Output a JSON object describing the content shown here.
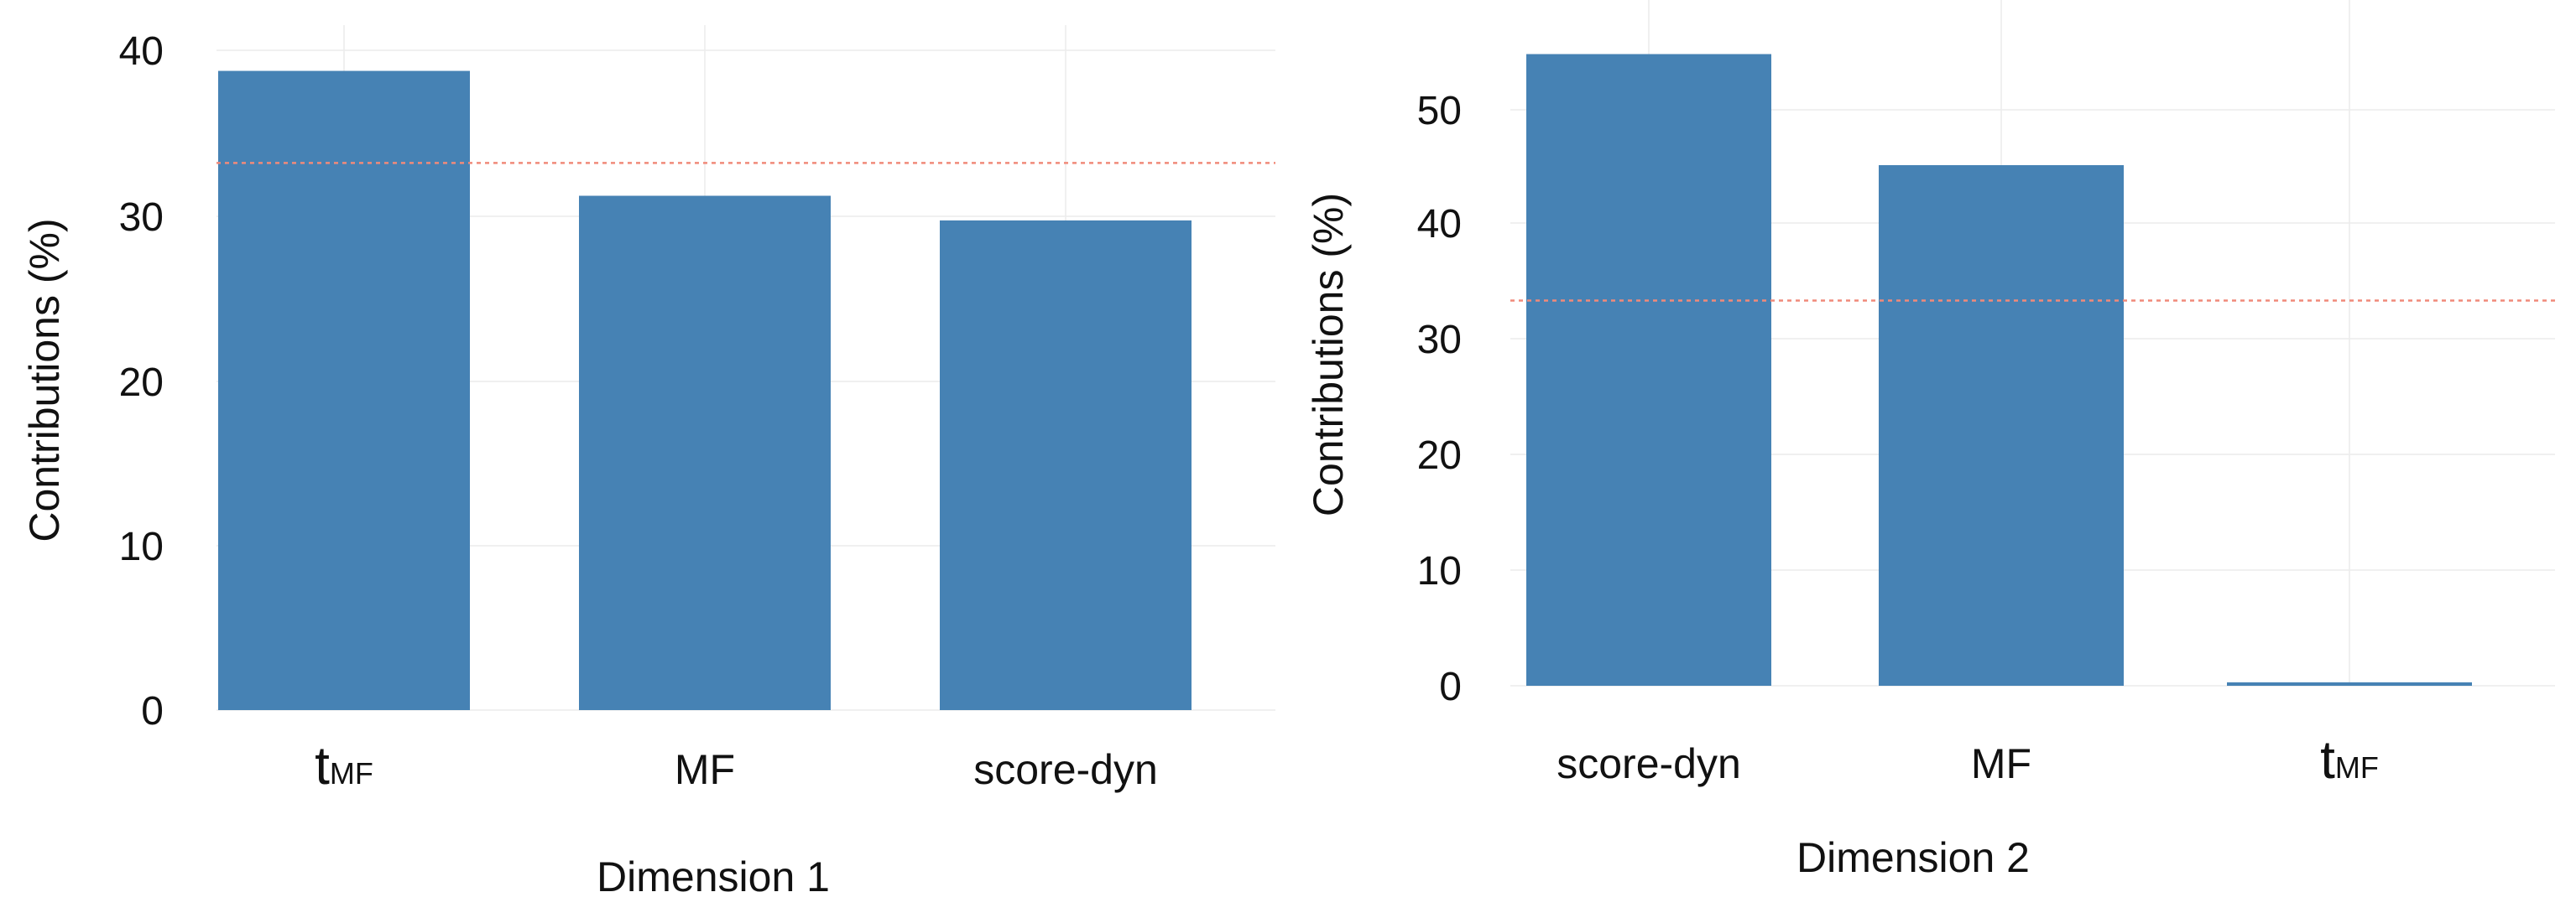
{
  "chart_data": [
    {
      "type": "bar",
      "categories": [
        "tMF",
        "MF",
        "score-dyn"
      ],
      "category_labels": [
        {
          "main": "t",
          "sub": "MF"
        },
        {
          "main": "MF",
          "sub": ""
        },
        {
          "main": "score-dyn",
          "sub": ""
        }
      ],
      "values": [
        38.9,
        31.3,
        29.8
      ],
      "reference_line": 33.3,
      "xlabel": "Dimension 1",
      "ylabel": "Contributions (%)",
      "ylim": [
        0,
        40
      ],
      "yticks": [
        "0",
        "10",
        "20",
        "30",
        "40"
      ],
      "grid": true,
      "colors": {
        "bar": "#4682b4",
        "reference_line": "#f08a7a"
      }
    },
    {
      "type": "bar",
      "categories": [
        "score-dyn",
        "MF",
        "tMF"
      ],
      "category_labels": [
        {
          "main": "score-dyn",
          "sub": ""
        },
        {
          "main": "MF",
          "sub": ""
        },
        {
          "main": "t",
          "sub": "MF"
        }
      ],
      "values": [
        54.6,
        45.0,
        0.3
      ],
      "reference_line": 33.3,
      "xlabel": "Dimension 2",
      "ylabel": "Contributions (%)",
      "ylim": [
        0,
        55
      ],
      "yticks": [
        "0",
        "10",
        "20",
        "30",
        "40",
        "50"
      ],
      "grid": true,
      "colors": {
        "bar": "#4682b4",
        "reference_line": "#f08a7a"
      }
    }
  ]
}
